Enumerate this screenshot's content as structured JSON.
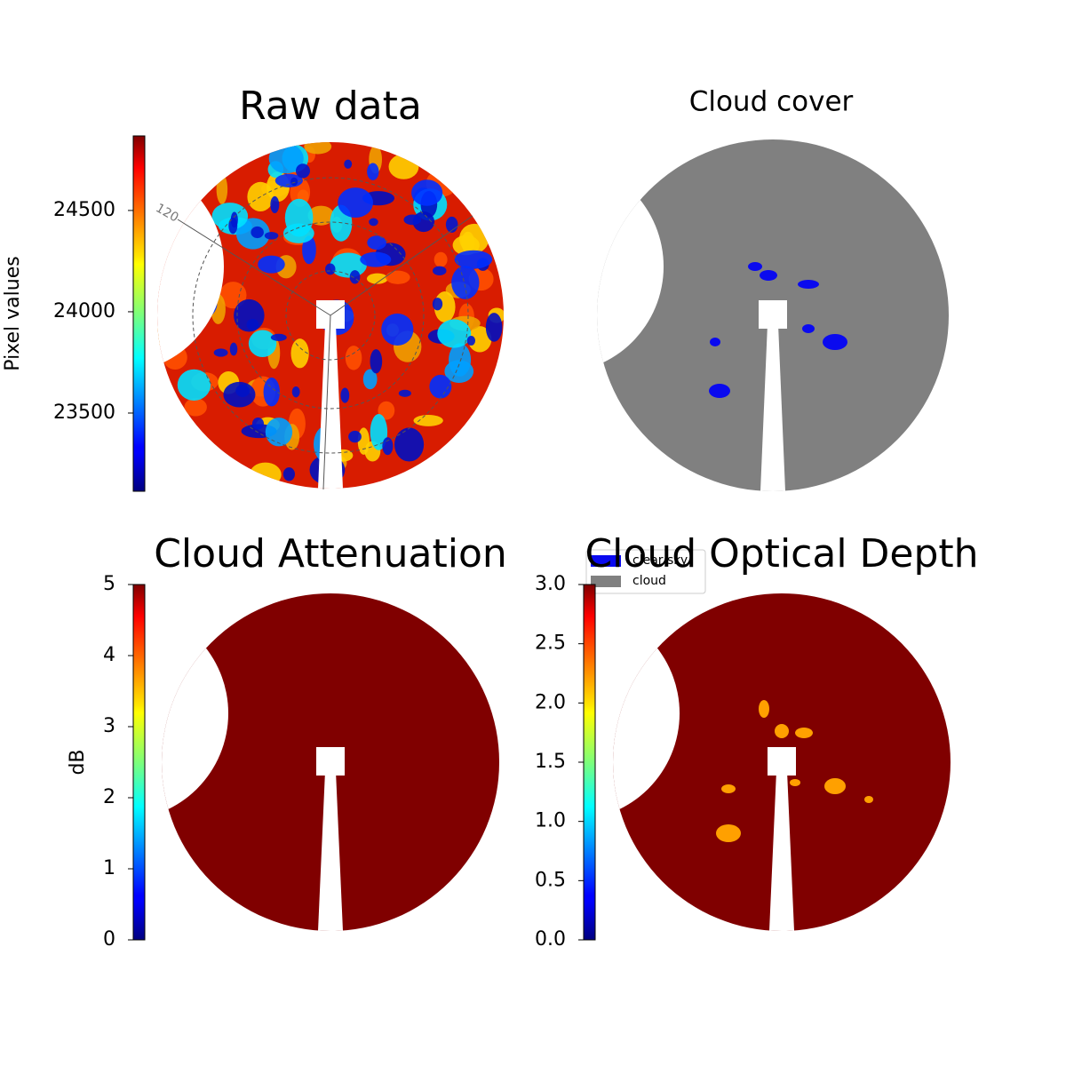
{
  "chart_data": [
    {
      "type": "image",
      "title": "Raw data",
      "colormap": "jet",
      "colorbar": {
        "label": "Pixel values",
        "ylim": [
          23114,
          24868
        ],
        "yticks": [
          23500,
          24000,
          24500
        ]
      },
      "annotations": [
        "120"
      ]
    },
    {
      "type": "image",
      "title": "Cloud cover",
      "series": [
        {
          "name": "clear sky",
          "color": "#0a0aef"
        },
        {
          "name": "cloud",
          "color": "#808080"
        }
      ],
      "legend": "lower right"
    },
    {
      "type": "image",
      "title": "Cloud Attenuation",
      "colormap": "jet",
      "colorbar": {
        "label": "dB",
        "ylim": [
          0,
          5
        ],
        "yticks": [
          0,
          1,
          2,
          3,
          4,
          5
        ]
      }
    },
    {
      "type": "image",
      "title": "Cloud Optical Depth",
      "colormap": "jet",
      "colorbar": {
        "ylim": [
          0,
          3
        ],
        "yticks": [
          {
            "value": 0,
            "label": "0.0"
          },
          0.5,
          {
            "value": 1,
            "label": "1.0"
          },
          1.5,
          {
            "value": 2,
            "label": "2.0"
          },
          2.5,
          {
            "value": 3,
            "label": "3.0"
          }
        ]
      }
    }
  ]
}
